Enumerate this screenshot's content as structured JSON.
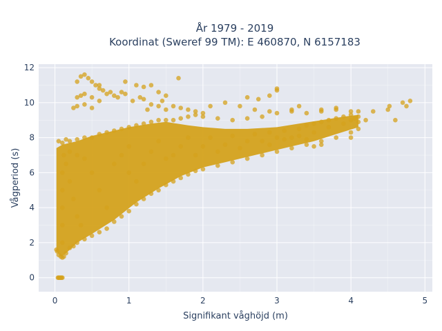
{
  "chart_data": {
    "type": "scatter",
    "title_line1": "År 1979 - 2019",
    "title_line2": "Koordinat (Sweref 99 TM): E 460870, N 6157183",
    "xlabel": "Signifikant våghöjd (m)",
    "ylabel": "Vågperiod (s)",
    "xlim": [
      -0.22,
      5.1
    ],
    "ylim": [
      -0.8,
      12.2
    ],
    "xticks": [
      0,
      1,
      2,
      3,
      4,
      5
    ],
    "xtick_labels": [
      "0",
      "1",
      "2",
      "3",
      "4",
      "5"
    ],
    "yticks": [
      0,
      2,
      4,
      6,
      8,
      10,
      12
    ],
    "ytick_labels": [
      "0",
      "2",
      "4",
      "6",
      "8",
      "10",
      "12"
    ],
    "grid": true,
    "legend": "none",
    "colors": {
      "marker": "#d4a21c",
      "plot_bg": "#e5e8f0",
      "grid": "#ffffff",
      "text": "#2a3f5f"
    },
    "series": [
      {
        "marker_color": "#d4a21c",
        "points": [
          [
            0.04,
            0.0
          ],
          [
            0.05,
            0.0
          ],
          [
            0.06,
            0.0
          ],
          [
            0.07,
            0.0
          ],
          [
            0.08,
            0.0
          ],
          [
            0.09,
            0.0
          ],
          [
            0.1,
            0.0
          ],
          [
            0.02,
            1.6
          ],
          [
            0.03,
            1.5
          ],
          [
            0.05,
            1.3
          ],
          [
            0.08,
            1.2
          ],
          [
            0.1,
            1.15
          ],
          [
            0.12,
            1.2
          ],
          [
            0.15,
            1.4
          ],
          [
            0.2,
            1.7
          ],
          [
            0.25,
            1.8
          ],
          [
            0.3,
            2.0
          ],
          [
            0.4,
            2.2
          ],
          [
            0.5,
            2.4
          ],
          [
            0.6,
            2.6
          ],
          [
            0.7,
            2.8
          ],
          [
            0.8,
            3.2
          ],
          [
            0.9,
            3.5
          ],
          [
            1.0,
            3.8
          ],
          [
            1.1,
            4.2
          ],
          [
            1.2,
            4.5
          ],
          [
            1.3,
            4.8
          ],
          [
            1.4,
            5.0
          ],
          [
            1.5,
            5.3
          ],
          [
            1.6,
            5.5
          ],
          [
            1.7,
            5.7
          ],
          [
            1.8,
            5.9
          ],
          [
            1.9,
            6.1
          ],
          [
            2.0,
            6.2
          ],
          [
            2.2,
            6.4
          ],
          [
            2.4,
            6.6
          ],
          [
            2.6,
            6.8
          ],
          [
            2.8,
            7.0
          ],
          [
            3.0,
            7.2
          ],
          [
            3.2,
            7.4
          ],
          [
            3.4,
            7.6
          ],
          [
            3.6,
            7.8
          ],
          [
            3.8,
            8.0
          ],
          [
            4.0,
            8.3
          ],
          [
            0.05,
            7.8
          ],
          [
            0.1,
            7.7
          ],
          [
            0.15,
            7.9
          ],
          [
            0.2,
            7.8
          ],
          [
            0.3,
            7.9
          ],
          [
            0.4,
            8.0
          ],
          [
            0.5,
            8.0
          ],
          [
            0.6,
            8.2
          ],
          [
            0.7,
            8.3
          ],
          [
            0.8,
            8.4
          ],
          [
            0.9,
            8.5
          ],
          [
            1.0,
            8.6
          ],
          [
            1.1,
            8.7
          ],
          [
            1.2,
            8.8
          ],
          [
            1.3,
            8.9
          ],
          [
            1.4,
            9.0
          ],
          [
            1.5,
            9.0
          ],
          [
            1.6,
            9.0
          ],
          [
            1.7,
            9.1
          ],
          [
            1.8,
            9.2
          ],
          [
            1.9,
            9.3
          ],
          [
            2.0,
            9.2
          ],
          [
            2.2,
            9.1
          ],
          [
            2.4,
            9.0
          ],
          [
            2.6,
            9.1
          ],
          [
            2.8,
            9.2
          ],
          [
            3.0,
            9.4
          ],
          [
            3.2,
            9.5
          ],
          [
            3.4,
            9.4
          ],
          [
            3.6,
            9.5
          ],
          [
            3.8,
            9.6
          ],
          [
            4.0,
            9.5
          ],
          [
            4.1,
            9.5
          ],
          [
            4.0,
            9.0
          ],
          [
            3.9,
            8.8
          ],
          [
            4.1,
            8.9
          ],
          [
            3.7,
            8.6
          ],
          [
            3.5,
            8.3
          ],
          [
            3.3,
            8.1
          ],
          [
            3.1,
            7.9
          ],
          [
            2.9,
            7.6
          ],
          [
            0.3,
            11.2
          ],
          [
            0.35,
            11.5
          ],
          [
            0.4,
            11.6
          ],
          [
            0.45,
            11.4
          ],
          [
            0.5,
            11.2
          ],
          [
            0.55,
            11.0
          ],
          [
            0.6,
            10.8
          ],
          [
            0.7,
            10.5
          ],
          [
            0.8,
            10.4
          ],
          [
            0.9,
            10.6
          ],
          [
            0.95,
            11.2
          ],
          [
            0.3,
            10.3
          ],
          [
            0.35,
            10.4
          ],
          [
            0.4,
            10.5
          ],
          [
            0.5,
            10.3
          ],
          [
            0.6,
            10.1
          ],
          [
            0.25,
            9.7
          ],
          [
            0.3,
            9.8
          ],
          [
            0.4,
            9.9
          ],
          [
            0.5,
            9.7
          ],
          [
            1.1,
            11.0
          ],
          [
            1.2,
            10.9
          ],
          [
            1.3,
            11.0
          ],
          [
            1.4,
            10.6
          ],
          [
            1.5,
            10.4
          ],
          [
            1.67,
            11.4
          ],
          [
            1.2,
            10.2
          ],
          [
            1.3,
            9.9
          ],
          [
            1.4,
            9.8
          ],
          [
            1.5,
            9.6
          ],
          [
            1.6,
            9.8
          ],
          [
            1.7,
            9.7
          ],
          [
            1.8,
            9.6
          ],
          [
            1.9,
            9.5
          ],
          [
            2.0,
            9.4
          ],
          [
            2.1,
            9.8
          ],
          [
            2.3,
            10.0
          ],
          [
            2.6,
            10.3
          ],
          [
            2.75,
            10.2
          ],
          [
            2.9,
            10.4
          ],
          [
            3.0,
            10.7
          ],
          [
            3.0,
            10.8
          ],
          [
            2.5,
            9.8
          ],
          [
            2.7,
            9.6
          ],
          [
            2.9,
            9.5
          ],
          [
            3.2,
            9.6
          ],
          [
            3.3,
            9.8
          ],
          [
            3.6,
            9.6
          ],
          [
            3.8,
            9.7
          ],
          [
            4.0,
            9.3
          ],
          [
            4.1,
            9.2
          ],
          [
            4.2,
            9.0
          ],
          [
            4.3,
            9.5
          ],
          [
            4.5,
            9.6
          ],
          [
            4.52,
            9.8
          ],
          [
            4.6,
            9.0
          ],
          [
            4.7,
            10.0
          ],
          [
            4.8,
            10.1
          ],
          [
            4.75,
            9.8
          ],
          [
            3.5,
            7.5
          ],
          [
            3.6,
            7.6
          ],
          [
            3.4,
            7.9
          ],
          [
            4.0,
            8.0
          ],
          [
            4.1,
            8.5
          ],
          [
            0.1,
            6.0
          ],
          [
            0.1,
            5.0
          ],
          [
            0.1,
            4.0
          ],
          [
            0.1,
            3.0
          ],
          [
            0.1,
            2.0
          ],
          [
            0.12,
            7.0
          ],
          [
            0.15,
            6.5
          ],
          [
            0.2,
            5.5
          ],
          [
            0.25,
            4.5
          ],
          [
            0.3,
            3.5
          ],
          [
            0.35,
            3.0
          ],
          [
            0.2,
            7.2
          ],
          [
            0.3,
            7.0
          ],
          [
            0.4,
            6.8
          ],
          [
            0.5,
            6.0
          ],
          [
            0.6,
            5.0
          ],
          [
            0.7,
            4.0
          ],
          [
            0.8,
            6.5
          ],
          [
            0.9,
            7.0
          ],
          [
            1.0,
            7.5
          ],
          [
            1.0,
            6.0
          ],
          [
            1.1,
            5.5
          ],
          [
            1.2,
            6.5
          ],
          [
            1.3,
            7.2
          ],
          [
            1.4,
            7.8
          ],
          [
            1.5,
            6.8
          ],
          [
            1.6,
            7.0
          ],
          [
            1.7,
            7.5
          ],
          [
            1.8,
            8.0
          ],
          [
            1.9,
            7.0
          ],
          [
            2.0,
            7.5
          ],
          [
            2.1,
            8.0
          ],
          [
            2.2,
            7.2
          ],
          [
            2.3,
            7.6
          ],
          [
            2.4,
            8.1
          ],
          [
            2.5,
            7.4
          ],
          [
            2.6,
            7.8
          ],
          [
            2.7,
            8.2
          ],
          [
            2.8,
            7.8
          ],
          [
            2.9,
            8.3
          ],
          [
            3.0,
            8.0
          ],
          [
            3.1,
            8.4
          ],
          [
            3.2,
            8.0
          ],
          [
            3.3,
            8.5
          ],
          [
            3.4,
            8.7
          ],
          [
            3.5,
            8.8
          ],
          [
            3.6,
            8.9
          ],
          [
            3.7,
            9.0
          ],
          [
            3.8,
            9.1
          ],
          [
            3.9,
            9.2
          ],
          [
            4.05,
            9.1
          ],
          [
            0.6,
            11.0
          ],
          [
            0.65,
            10.7
          ],
          [
            0.75,
            10.6
          ],
          [
            0.85,
            10.3
          ],
          [
            0.95,
            10.5
          ],
          [
            1.05,
            10.1
          ],
          [
            1.15,
            10.3
          ],
          [
            1.25,
            9.6
          ],
          [
            1.45,
            10.1
          ]
        ]
      }
    ]
  }
}
